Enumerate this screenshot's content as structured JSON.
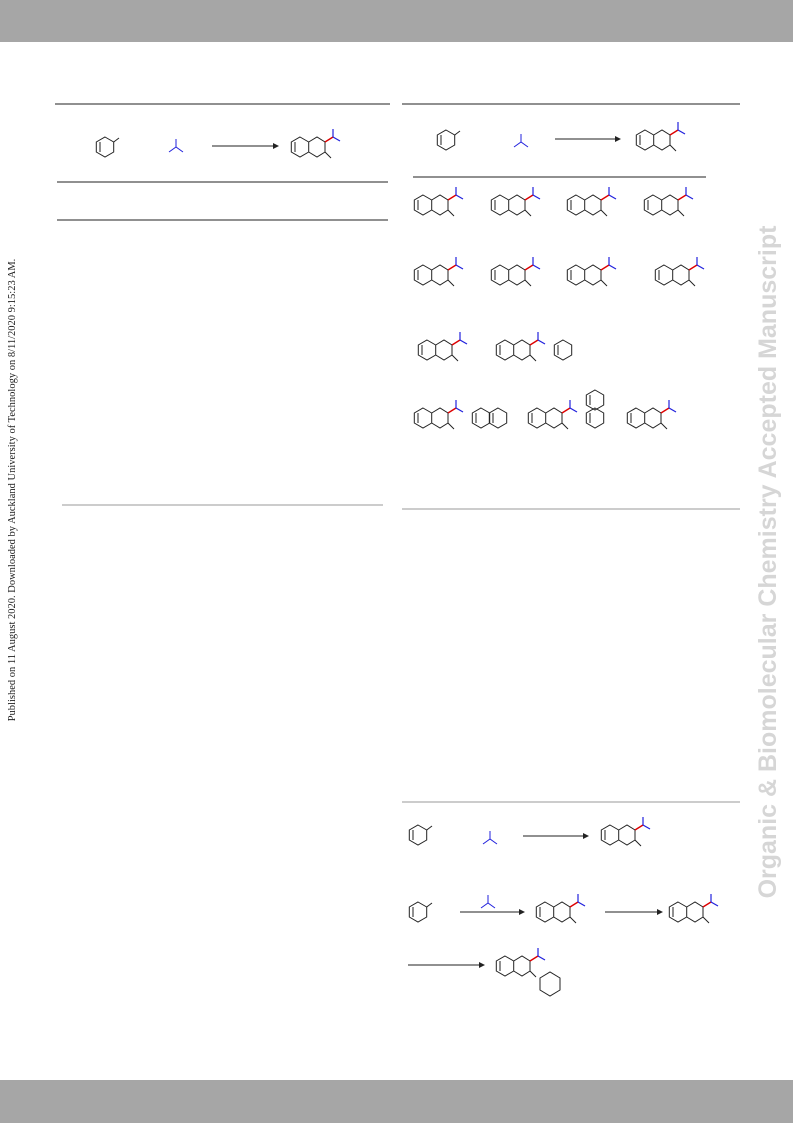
{
  "sidebar": {
    "published": "Published on 11 August 2020. Downloaded by Auckland University of Technology on 8/11/2020 9:15:23 AM."
  },
  "watermark": "Organic & Biomolecular Chemistry Accepted Manuscript"
}
